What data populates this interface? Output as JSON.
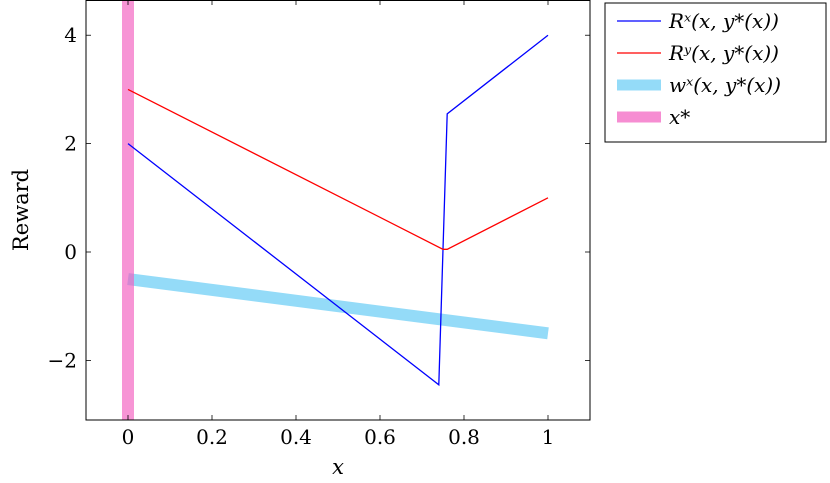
{
  "chart_data": {
    "type": "line",
    "xlabel": "x",
    "ylabel": "Reward",
    "xlim": [
      -0.1,
      1.1
    ],
    "ylim": [
      -3.1,
      4.65
    ],
    "xticks": [
      0,
      0.2,
      0.4,
      0.6,
      0.8,
      1
    ],
    "xtick_labels": [
      "0",
      "0.2",
      "0.4",
      "0.6",
      "0.8",
      "1"
    ],
    "yticks": [
      -2,
      0,
      2,
      4
    ],
    "ytick_labels": [
      "−2",
      "0",
      "2",
      "4"
    ],
    "legend_position": "outside-top-right",
    "grid": false,
    "series": [
      {
        "name": "Rˣ(x, y*(x))",
        "color": "#0000ff",
        "style": "thin",
        "x": [
          0,
          0.74,
          0.76,
          1.0
        ],
        "y": [
          2.0,
          -2.45,
          2.55,
          4.0
        ]
      },
      {
        "name": "Rʸ(x, y*(x))",
        "color": "#ff0000",
        "style": "thin",
        "x": [
          0,
          0.75,
          0.76,
          1.0
        ],
        "y": [
          3.0,
          0.05,
          0.05,
          1.0
        ]
      },
      {
        "name": "wˣ(x, y*(x))",
        "color": "#66ccf5",
        "style": "thick",
        "x": [
          0,
          1.0
        ],
        "y": [
          -0.5,
          -1.5
        ]
      }
    ],
    "vlines": [
      {
        "name": "x*",
        "color": "#f25cbf",
        "x": 0
      }
    ]
  }
}
